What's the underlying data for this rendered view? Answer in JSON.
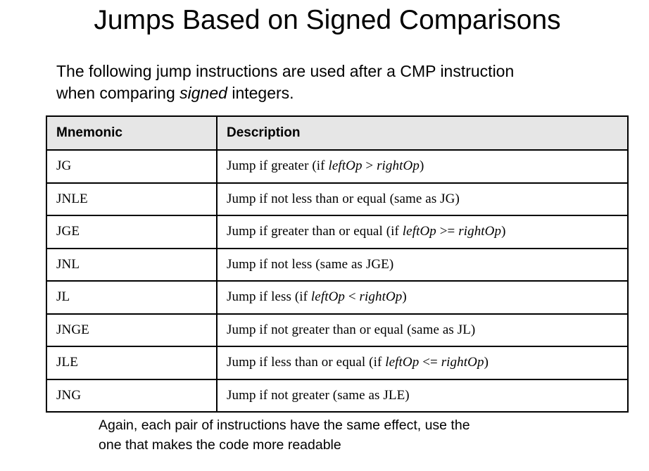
{
  "title": "Jumps Based on Signed Comparisons",
  "intro": {
    "line1": "The following jump instructions are used after a CMP instruction",
    "line2_before": "when comparing ",
    "line2_emphasis": "signed",
    "line2_after": " integers."
  },
  "table": {
    "headers": [
      "Mnemonic",
      "Description"
    ],
    "rows": [
      {
        "mnemonic": "JG",
        "desc_before": "Jump if greater (if ",
        "left_op": "leftOp",
        "operator": " > ",
        "right_op": "rightOp",
        "desc_after": ")"
      },
      {
        "mnemonic": "JNLE",
        "desc_before": "Jump if not less than or equal (same as JG)",
        "left_op": "",
        "operator": "",
        "right_op": "",
        "desc_after": ""
      },
      {
        "mnemonic": "JGE",
        "desc_before": "Jump if greater than or equal (if ",
        "left_op": "leftOp",
        "operator": " >= ",
        "right_op": "rightOp",
        "desc_after": ")"
      },
      {
        "mnemonic": "JNL",
        "desc_before": "Jump if not less (same as JGE)",
        "left_op": "",
        "operator": "",
        "right_op": "",
        "desc_after": ""
      },
      {
        "mnemonic": "JL",
        "desc_before": "Jump if less (if ",
        "left_op": "leftOp",
        "operator": " < ",
        "right_op": "rightOp",
        "desc_after": ")"
      },
      {
        "mnemonic": "JNGE",
        "desc_before": "Jump if not greater than or equal (same as JL)",
        "left_op": "",
        "operator": "",
        "right_op": "",
        "desc_after": ""
      },
      {
        "mnemonic": "JLE",
        "desc_before": "Jump if less than or equal (if ",
        "left_op": "leftOp",
        "operator": " <= ",
        "right_op": "rightOp",
        "desc_after": ")"
      },
      {
        "mnemonic": "JNG",
        "desc_before": "Jump if not greater (same as JLE)",
        "left_op": "",
        "operator": "",
        "right_op": "",
        "desc_after": ""
      }
    ]
  },
  "note": {
    "line1": "Again, each pair of instructions have the same effect, use the",
    "line2": "one that makes the code more readable"
  }
}
